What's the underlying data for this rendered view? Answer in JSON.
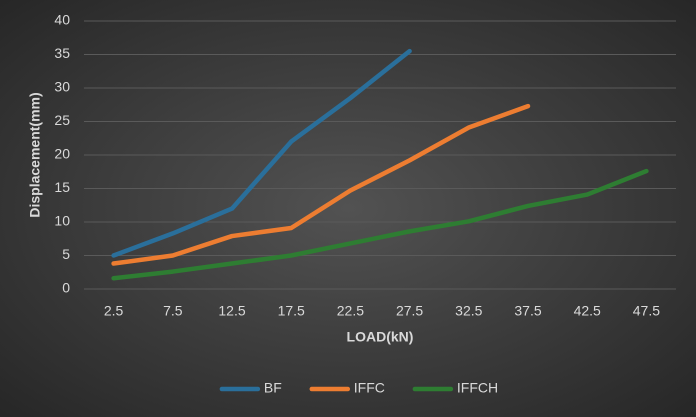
{
  "chart_data": {
    "type": "line",
    "x_label": "LOAD(kN)",
    "y_label": "Displacement(mm)",
    "categories": [
      "2.5",
      "7.5",
      "12.5",
      "17.5",
      "22.5",
      "27.5",
      "32.5",
      "37.5",
      "42.5",
      "47.5"
    ],
    "series": [
      {
        "name": "BF",
        "color": "#2a6f9b",
        "values": [
          5,
          8.3,
          12,
          22,
          28.5,
          35.5,
          null,
          null,
          null,
          null
        ]
      },
      {
        "name": "IFFC",
        "color": "#ed7d31",
        "values": [
          3.8,
          5,
          7.9,
          9.1,
          14.7,
          19.2,
          24.1,
          27.3,
          null,
          null
        ]
      },
      {
        "name": "IFFCH",
        "color": "#2e7d32",
        "values": [
          1.6,
          2.6,
          3.8,
          5,
          6.8,
          8.6,
          10.1,
          12.4,
          14.1,
          17.6
        ]
      }
    ],
    "ylim": [
      0,
      40
    ],
    "yticks": [
      0,
      5,
      10,
      15,
      20,
      25,
      30,
      35,
      40
    ],
    "grid": true,
    "legend": "bottom"
  }
}
